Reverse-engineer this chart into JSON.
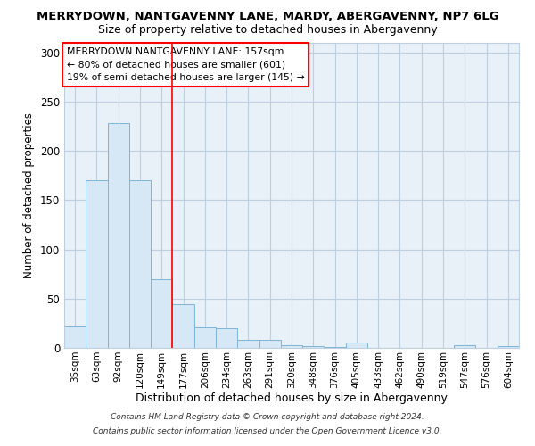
{
  "title1": "MERRYDOWN, NANTGAVENNY LANE, MARDY, ABERGAVENNY, NP7 6LG",
  "title2": "Size of property relative to detached houses in Abergavenny",
  "xlabel": "Distribution of detached houses by size in Abergavenny",
  "ylabel": "Number of detached properties",
  "categories": [
    "35sqm",
    "63sqm",
    "92sqm",
    "120sqm",
    "149sqm",
    "177sqm",
    "206sqm",
    "234sqm",
    "263sqm",
    "291sqm",
    "320sqm",
    "348sqm",
    "376sqm",
    "405sqm",
    "433sqm",
    "462sqm",
    "490sqm",
    "519sqm",
    "547sqm",
    "576sqm",
    "604sqm"
  ],
  "values": [
    22,
    170,
    228,
    170,
    70,
    44,
    21,
    20,
    8,
    8,
    3,
    2,
    1,
    5,
    0,
    0,
    0,
    0,
    3,
    0,
    2
  ],
  "bar_color": "#d6e8f5",
  "bar_edge_color": "#7fb4d8",
  "red_line_x": 4.5,
  "annotation_lines": [
    "MERRYDOWN NANTGAVENNY LANE: 157sqm",
    "← 80% of detached houses are smaller (601)",
    "19% of semi-detached houses are larger (145) →"
  ],
  "ylim": [
    0,
    310
  ],
  "yticks": [
    0,
    50,
    100,
    150,
    200,
    250,
    300
  ],
  "footer1": "Contains HM Land Registry data © Crown copyright and database right 2024.",
  "footer2": "Contains public sector information licensed under the Open Government Licence v3.0.",
  "bg_color": "#ffffff",
  "plot_bg_color": "#e8f0f8",
  "grid_color": "#c0cfe0"
}
